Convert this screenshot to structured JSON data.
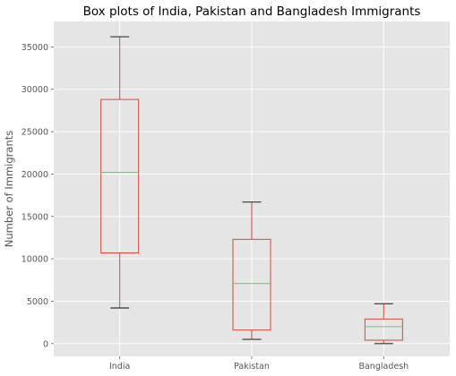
{
  "chart_data": {
    "type": "box",
    "title": "Box plots of India, Pakistan and Bangladesh Immigrants",
    "xlabel": "",
    "ylabel": "Number of Immigrants",
    "ylim": [
      -1500,
      38000
    ],
    "yticks": [
      0,
      5000,
      10000,
      15000,
      20000,
      25000,
      30000,
      35000
    ],
    "grid": true,
    "categories": [
      "India",
      "Pakistan",
      "Bangladesh"
    ],
    "boxes": [
      {
        "name": "India",
        "min": 4200,
        "q1": 10700,
        "median": 20200,
        "q3": 28800,
        "max": 36200
      },
      {
        "name": "Pakistan",
        "min": 500,
        "q1": 1600,
        "median": 7100,
        "q3": 12300,
        "max": 16700
      },
      {
        "name": "Bangladesh",
        "min": 0,
        "q1": 400,
        "median": 2000,
        "q3": 2900,
        "max": 4700
      }
    ],
    "colors": {
      "background": "#e5e5e5",
      "grid": "#ffffff",
      "box": "#d04b3a",
      "median": "#8fb08c",
      "whisker": "#333333"
    }
  }
}
